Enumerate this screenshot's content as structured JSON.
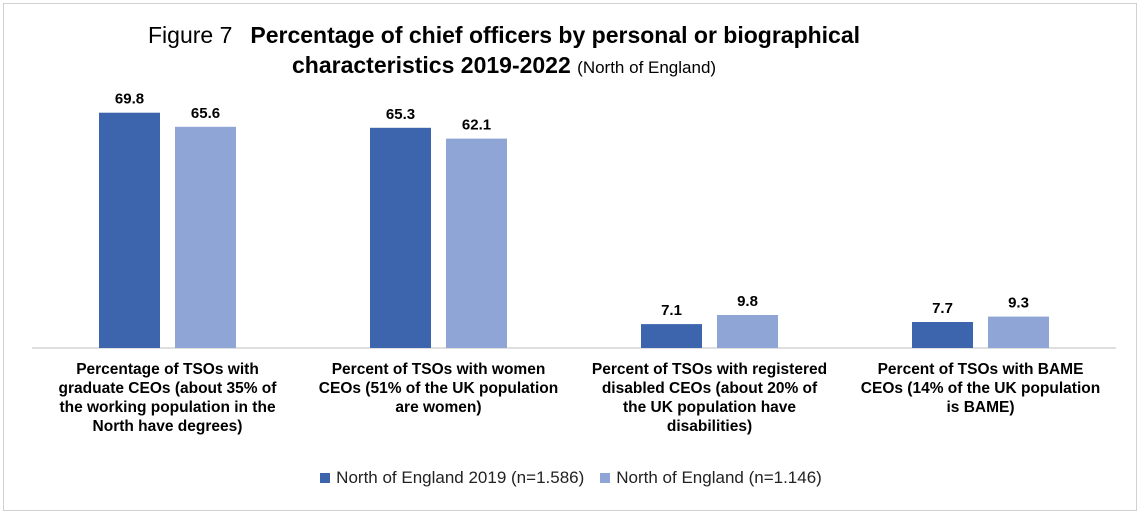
{
  "title": {
    "figure": "Figure 7",
    "main": "Percentage of chief officers by personal or biographical",
    "line2": "characteristics 2019-2022",
    "sub": "(North of England)"
  },
  "chart_data": {
    "type": "bar",
    "title": "Figure 7 Percentage of chief officers by personal or biographical characteristics 2019-2022 (North of England)",
    "categories": [
      "Percentage of TSOs with graduate CEOs (about 35% of the working population in the North have degrees)",
      "Percent of TSOs with women CEOs (51% of the UK population are women)",
      "Percent of TSOs with registered disabled CEOs (about 20% of the UK population have disabilities)",
      "Percent of TSOs with BAME CEOs (14% of the UK population is BAME)"
    ],
    "category_lines": [
      [
        "Percentage of TSOs with",
        "graduate CEOs (about 35% of",
        "the working population in the",
        "North have degrees)"
      ],
      [
        "Percent of TSOs with women",
        "CEOs (51% of the UK population",
        "are women)"
      ],
      [
        "Percent of TSOs with registered",
        "disabled CEOs (about 20% of",
        "the UK population have",
        "disabilities)"
      ],
      [
        "Percent of TSOs with BAME",
        "CEOs (14% of the UK population",
        "is BAME)"
      ]
    ],
    "series": [
      {
        "name": "North of England 2019 (n=1.586)",
        "values": [
          69.8,
          65.3,
          7.1,
          7.7
        ],
        "color": "#3d65ad"
      },
      {
        "name": "North of England (n=1.146)",
        "values": [
          65.6,
          62.1,
          9.8,
          9.3
        ],
        "color": "#8fa5d6"
      }
    ],
    "ylim": [
      0,
      70
    ],
    "grid": false,
    "legend": "bottom",
    "data_labels": true
  }
}
